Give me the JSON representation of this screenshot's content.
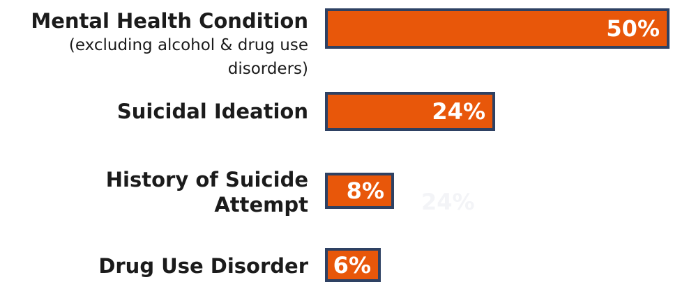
{
  "chart_data": {
    "type": "bar",
    "orientation": "horizontal",
    "categories": [
      {
        "label": "Mental Health Condition",
        "sublabel": "(excluding alcohol & drug use disorders)"
      },
      {
        "label": "Suicidal Ideation",
        "sublabel": ""
      },
      {
        "label": "History of Suicide Attempt",
        "sublabel": ""
      },
      {
        "label": "Drug Use Disorder",
        "sublabel": ""
      }
    ],
    "values": [
      50,
      24,
      8,
      6
    ],
    "value_labels": [
      "50%",
      "24%",
      "8%",
      "6%"
    ],
    "ghost_label": "24%",
    "xlim": [
      0,
      50
    ],
    "title": "",
    "xlabel": "",
    "ylabel": "",
    "grid": false,
    "legend": "none",
    "colors": {
      "bar_fill": "#e8570a",
      "bar_border": "#2e4163",
      "label_text": "#1b1b1b",
      "value_text": "#ffffff"
    }
  }
}
